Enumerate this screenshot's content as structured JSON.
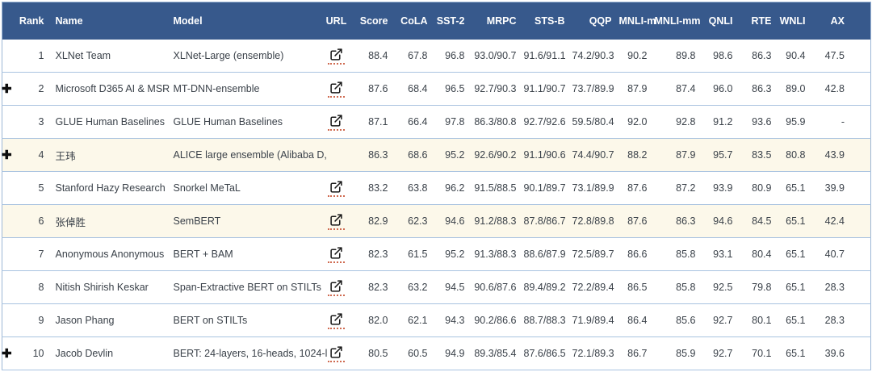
{
  "colors": {
    "header_bg": "#37598c",
    "header_text": "#ffffff",
    "row_border": "#a9c3e0",
    "highlight_row_bg": "#fcf8ea",
    "body_text": "#3a4149",
    "link_icon": "#1a1a1a",
    "link_underline": "#cf6a50"
  },
  "icons": {
    "expand_glyph": "✚",
    "expand_row": "plus-icon",
    "url_link": "external-link-icon"
  },
  "table": {
    "columns": [
      {
        "key": "rank",
        "label": "Rank"
      },
      {
        "key": "name",
        "label": "Name"
      },
      {
        "key": "model",
        "label": "Model"
      },
      {
        "key": "url",
        "label": "URL"
      },
      {
        "key": "score",
        "label": "Score"
      },
      {
        "key": "cola",
        "label": "CoLA"
      },
      {
        "key": "sst2",
        "label": "SST-2"
      },
      {
        "key": "mrpc",
        "label": "MRPC"
      },
      {
        "key": "stsb",
        "label": "STS-B"
      },
      {
        "key": "qqp",
        "label": "QQP"
      },
      {
        "key": "mnli_m",
        "label": "MNLI-m"
      },
      {
        "key": "mnli_mm",
        "label": "MNLI-mm"
      },
      {
        "key": "qnli",
        "label": "QNLI"
      },
      {
        "key": "rte",
        "label": "RTE"
      },
      {
        "key": "wnli",
        "label": "WNLI"
      },
      {
        "key": "ax",
        "label": "AX"
      }
    ],
    "rows": [
      {
        "expand": false,
        "highlight": false,
        "rank": "1",
        "name": "XLNet Team",
        "model": "XLNet-Large (ensemble)",
        "url": true,
        "score": "88.4",
        "cola": "67.8",
        "sst2": "96.8",
        "mrpc": "93.0/90.7",
        "stsb": "91.6/91.1",
        "qqp": "74.2/90.3",
        "mnli_m": "90.2",
        "mnli_mm": "89.8",
        "qnli": "98.6",
        "rte": "86.3",
        "wnli": "90.4",
        "ax": "47.5"
      },
      {
        "expand": true,
        "highlight": false,
        "rank": "2",
        "name": "Microsoft D365 AI & MSR",
        "model": "MT-DNN-ensemble",
        "url": true,
        "score": "87.6",
        "cola": "68.4",
        "sst2": "96.5",
        "mrpc": "92.7/90.3",
        "stsb": "91.1/90.7",
        "qqp": "73.7/89.9",
        "mnli_m": "87.9",
        "mnli_mm": "87.4",
        "qnli": "96.0",
        "rte": "86.3",
        "wnli": "89.0",
        "ax": "42.8"
      },
      {
        "expand": false,
        "highlight": false,
        "rank": "3",
        "name": "GLUE Human Baselines",
        "model": "GLUE Human Baselines",
        "url": true,
        "score": "87.1",
        "cola": "66.4",
        "sst2": "97.8",
        "mrpc": "86.3/80.8",
        "stsb": "92.7/92.6",
        "qqp": "59.5/80.4",
        "mnli_m": "92.0",
        "mnli_mm": "92.8",
        "qnli": "91.2",
        "rte": "93.6",
        "wnli": "95.9",
        "ax": "-"
      },
      {
        "expand": true,
        "highlight": true,
        "rank": "4",
        "name": "王玮",
        "model": "ALICE large ensemble (Alibaba D,",
        "url": false,
        "score": "86.3",
        "cola": "68.6",
        "sst2": "95.2",
        "mrpc": "92.6/90.2",
        "stsb": "91.1/90.6",
        "qqp": "74.4/90.7",
        "mnli_m": "88.2",
        "mnli_mm": "87.9",
        "qnli": "95.7",
        "rte": "83.5",
        "wnli": "80.8",
        "ax": "43.9"
      },
      {
        "expand": false,
        "highlight": false,
        "rank": "5",
        "name": "Stanford Hazy Research",
        "model": "Snorkel MeTaL",
        "url": true,
        "score": "83.2",
        "cola": "63.8",
        "sst2": "96.2",
        "mrpc": "91.5/88.5",
        "stsb": "90.1/89.7",
        "qqp": "73.1/89.9",
        "mnli_m": "87.6",
        "mnli_mm": "87.2",
        "qnli": "93.9",
        "rte": "80.9",
        "wnli": "65.1",
        "ax": "39.9"
      },
      {
        "expand": false,
        "highlight": true,
        "rank": "6",
        "name": "张倬胜",
        "model": "SemBERT",
        "url": true,
        "score": "82.9",
        "cola": "62.3",
        "sst2": "94.6",
        "mrpc": "91.2/88.3",
        "stsb": "87.8/86.7",
        "qqp": "72.8/89.8",
        "mnli_m": "87.6",
        "mnli_mm": "86.3",
        "qnli": "94.6",
        "rte": "84.5",
        "wnli": "65.1",
        "ax": "42.4"
      },
      {
        "expand": false,
        "highlight": false,
        "rank": "7",
        "name": "Anonymous Anonymous",
        "model": "BERT + BAM",
        "url": true,
        "score": "82.3",
        "cola": "61.5",
        "sst2": "95.2",
        "mrpc": "91.3/88.3",
        "stsb": "88.6/87.9",
        "qqp": "72.5/89.7",
        "mnli_m": "86.6",
        "mnli_mm": "85.8",
        "qnli": "93.1",
        "rte": "80.4",
        "wnli": "65.1",
        "ax": "40.7"
      },
      {
        "expand": false,
        "highlight": false,
        "rank": "8",
        "name": "Nitish Shirish Keskar",
        "model": "Span-Extractive BERT on STILTs",
        "url": true,
        "score": "82.3",
        "cola": "63.2",
        "sst2": "94.5",
        "mrpc": "90.6/87.6",
        "stsb": "89.4/89.2",
        "qqp": "72.2/89.4",
        "mnli_m": "86.5",
        "mnli_mm": "85.8",
        "qnli": "92.5",
        "rte": "79.8",
        "wnli": "65.1",
        "ax": "28.3"
      },
      {
        "expand": false,
        "highlight": false,
        "rank": "9",
        "name": "Jason Phang",
        "model": "BERT on STILTs",
        "url": true,
        "score": "82.0",
        "cola": "62.1",
        "sst2": "94.3",
        "mrpc": "90.2/86.6",
        "stsb": "88.7/88.3",
        "qqp": "71.9/89.4",
        "mnli_m": "86.4",
        "mnli_mm": "85.6",
        "qnli": "92.7",
        "rte": "80.1",
        "wnli": "65.1",
        "ax": "28.3"
      },
      {
        "expand": true,
        "highlight": false,
        "rank": "10",
        "name": "Jacob Devlin",
        "model": "BERT: 24-layers, 16-heads, 1024-l",
        "url": true,
        "score": "80.5",
        "cola": "60.5",
        "sst2": "94.9",
        "mrpc": "89.3/85.4",
        "stsb": "87.6/86.5",
        "qqp": "72.1/89.3",
        "mnli_m": "86.7",
        "mnli_mm": "85.9",
        "qnli": "92.7",
        "rte": "70.1",
        "wnli": "65.1",
        "ax": "39.6"
      }
    ]
  }
}
